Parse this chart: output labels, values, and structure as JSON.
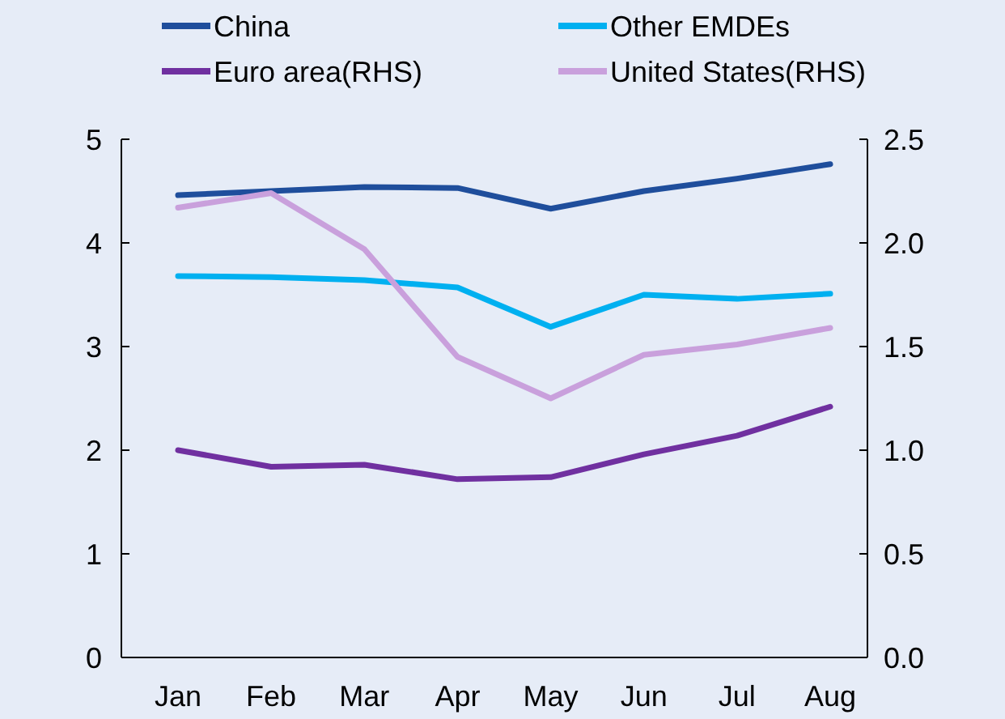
{
  "chart_data": {
    "type": "line",
    "categories": [
      "Jan",
      "Feb",
      "Mar",
      "Apr",
      "May",
      "Jun",
      "Jul",
      "Aug"
    ],
    "series": [
      {
        "name": "China",
        "color": "#1f4e9c",
        "values": [
          4.46,
          4.5,
          4.54,
          4.53,
          4.33,
          4.5,
          4.62,
          4.76
        ]
      },
      {
        "name": "Other EMDEs",
        "color": "#00b0f0",
        "values": [
          3.68,
          3.67,
          3.64,
          3.57,
          3.19,
          3.5,
          3.46,
          3.51
        ]
      },
      {
        "name": "Euro area(RHS)",
        "color": "#7030a0",
        "axis": "y2",
        "values": [
          1.0,
          0.92,
          0.93,
          0.86,
          0.87,
          0.98,
          1.07,
          1.21
        ]
      },
      {
        "name": "United States(RHS)",
        "color": "#c9a0dc",
        "axis": "y2",
        "values": [
          2.17,
          2.24,
          1.97,
          1.45,
          1.25,
          1.46,
          1.51,
          1.59
        ]
      }
    ],
    "ylim": [
      0,
      5
    ],
    "yticks": [
      0,
      1,
      2,
      3,
      4,
      5
    ],
    "y2lim": [
      0,
      2.5
    ],
    "y2ticks": [
      {
        "value": 0,
        "label": "0.0"
      },
      {
        "value": 0.5,
        "label": "0.5"
      },
      {
        "value": 1,
        "label": "1.0"
      },
      {
        "value": 1.5,
        "label": "1.5"
      },
      {
        "value": 2,
        "label": "2.0"
      },
      {
        "value": 2.5,
        "label": "2.5"
      }
    ],
    "legend": "top",
    "grid": false,
    "line_style": "solid"
  }
}
